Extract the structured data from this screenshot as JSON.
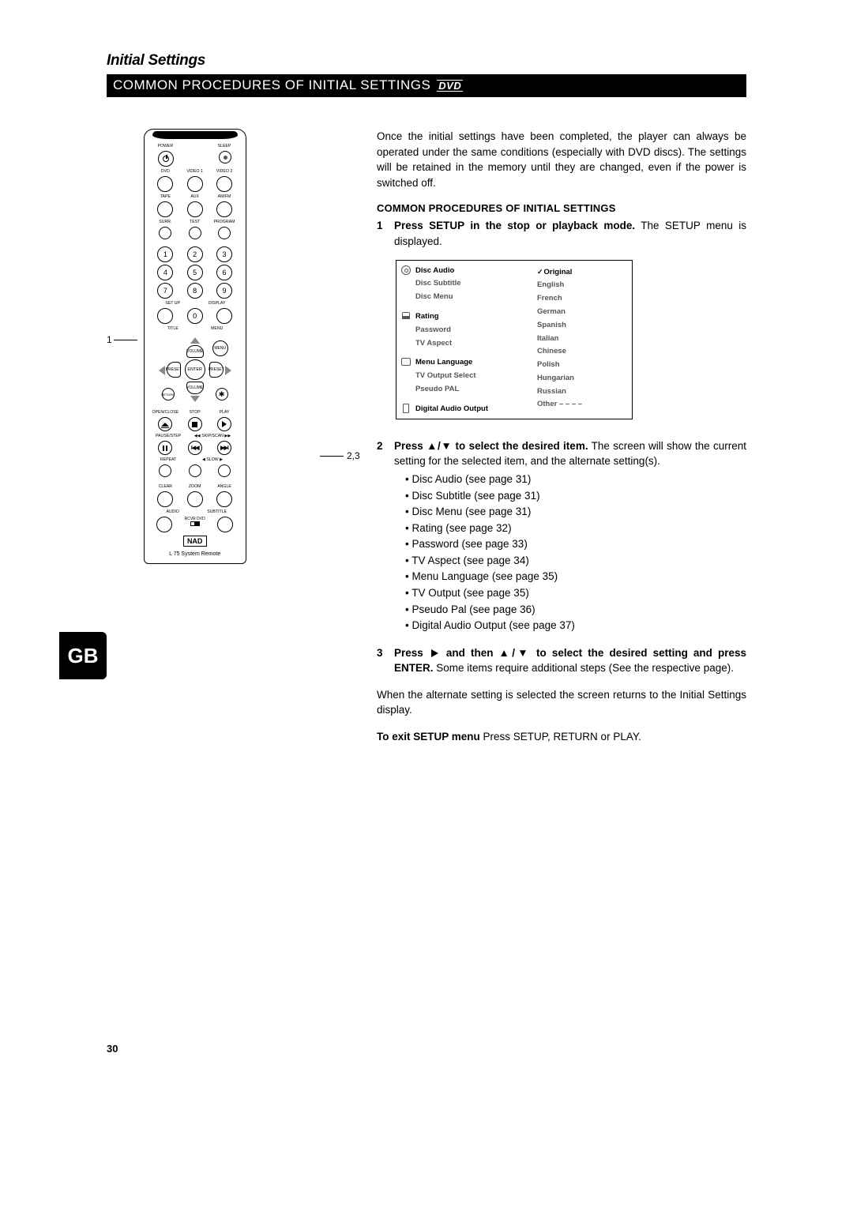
{
  "page": {
    "title": "Initial Settings",
    "subtitle": "COMMON PROCEDURES OF INITIAL SETTINGS",
    "dvd_badge": "DVD",
    "lang_tab": "GB",
    "page_number": "30"
  },
  "intro": "Once the initial settings have been completed, the player can always be operated under the same conditions (especially with DVD discs). The settings will be retained in the memory until they are changed, even if the power is switched off.",
  "section_heading": "COMMON PROCEDURES OF INITIAL SETTINGS",
  "steps": {
    "s1": {
      "num": "1",
      "bold": "Press SETUP in the stop or playback mode.",
      "rest": " The SETUP menu is displayed."
    },
    "s2": {
      "num": "2",
      "bold": "Press ▲/▼ to select the desired item.",
      "rest": " The screen will show the current setting for the selected item, and the alternate setting(s).",
      "bullets": [
        "Disc Audio (see page 31)",
        "Disc Subtitle (see page 31)",
        "Disc Menu (see page 31)",
        "Rating (see page 32)",
        "Password (see page 33)",
        "TV Aspect (see page 34)",
        "Menu Language (see page 35)",
        "TV Output (see page 35)",
        "Pseudo Pal (see page 36)",
        "Digital Audio Output (see page 37)"
      ]
    },
    "s3": {
      "num": "3",
      "bold_a": "Press ",
      "bold_b": " and then ▲/▼ to select the desired setting and press ENTER.",
      "rest": " Some items require additional steps (See the respective page)."
    }
  },
  "outro1": "When the alternate setting is selected the screen returns to the Initial Settings display.",
  "outro2_bold": "To exit SETUP menu",
  "outro2_rest": " Press SETUP, RETURN or PLAY.",
  "setup_menu": {
    "left": [
      {
        "icon": "disc",
        "items": [
          "Disc Audio",
          "Disc Subtitle",
          "Disc Menu"
        ]
      },
      {
        "icon": "lock",
        "items": [
          "Rating",
          "Password",
          "TV Aspect"
        ]
      },
      {
        "icon": "tv",
        "items": [
          "Menu Language",
          "TV Output Select",
          "Pseudo PAL"
        ]
      },
      {
        "icon": "speaker",
        "items": [
          "Digital Audio Output"
        ]
      }
    ],
    "right": [
      "Original",
      "English",
      "French",
      "German",
      "Spanish",
      "Italian",
      "Chinese",
      "Polish",
      "Hungarian",
      "Russian",
      "Other  – – – –"
    ]
  },
  "remote": {
    "label": "L 75 System Remote",
    "brand": "NAD",
    "callout_1": "1",
    "callout_23": "2,3",
    "rows": {
      "r1": [
        "POWER",
        "",
        "SLEEP"
      ],
      "r2": [
        "DVD",
        "VIDEO 1",
        "VIDEO 2"
      ],
      "r3": [
        "TAPE",
        "AUX",
        "AM/FM"
      ],
      "r4": [
        "SURR.",
        "TEST",
        "PROGRAM"
      ],
      "nums": [
        "1",
        "2",
        "3",
        "4",
        "5",
        "6",
        "7",
        "8",
        "9",
        "0"
      ],
      "r5": [
        "SET UP",
        "DISPLAY"
      ],
      "r6": [
        "TITLE",
        "MENU"
      ],
      "nav": {
        "enter": "ENTER",
        "menu": "MENU",
        "vol": "VOLUME",
        "preset": "PRESET",
        "return": "RETURN",
        "mute": "MUTE"
      },
      "r7": [
        "OPEN/CLOSE",
        "STOP",
        "PLAY"
      ],
      "r8": [
        "PAUSE/STEP",
        "◀◀ SKIP/SCAN ▶▶"
      ],
      "r9": [
        "REPEAT",
        "◀   SLOW   ▶"
      ],
      "r10": [
        "CLEAR",
        "ZOOM",
        "ANGLE"
      ],
      "r11": [
        "AUDIO",
        "SUBTITLE"
      ],
      "rcvr": "RCVR    DVD"
    }
  }
}
